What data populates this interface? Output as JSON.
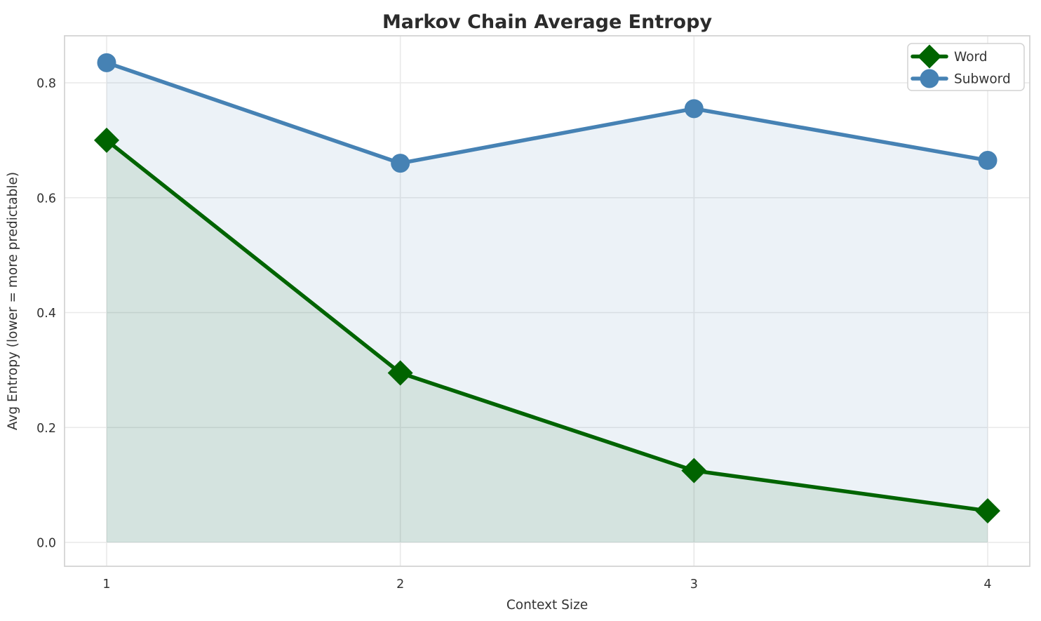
{
  "chart_data": {
    "type": "line",
    "title": "Markov Chain Average Entropy",
    "xlabel": "Context Size",
    "ylabel": "Avg Entropy (lower = more predictable)",
    "x": [
      1,
      2,
      3,
      4
    ],
    "x_tick_labels": [
      "1",
      "2",
      "3",
      "4"
    ],
    "y_ticks": [
      0.0,
      0.2,
      0.4,
      0.6,
      0.8
    ],
    "y_tick_labels": [
      "0.0",
      "0.2",
      "0.4",
      "0.6",
      "0.8"
    ],
    "ylim": [
      -0.042,
      0.882
    ],
    "grid": true,
    "legend_position": "upper right",
    "area_fill_to": 0,
    "series": [
      {
        "name": "Word",
        "marker": "diamond",
        "color": "#006400",
        "fill_alpha": 0.1,
        "values": [
          0.7,
          0.295,
          0.125,
          0.055
        ]
      },
      {
        "name": "Subword",
        "marker": "circle",
        "color": "#4682b4",
        "fill_alpha": 0.1,
        "values": [
          0.835,
          0.66,
          0.755,
          0.665
        ]
      }
    ]
  }
}
